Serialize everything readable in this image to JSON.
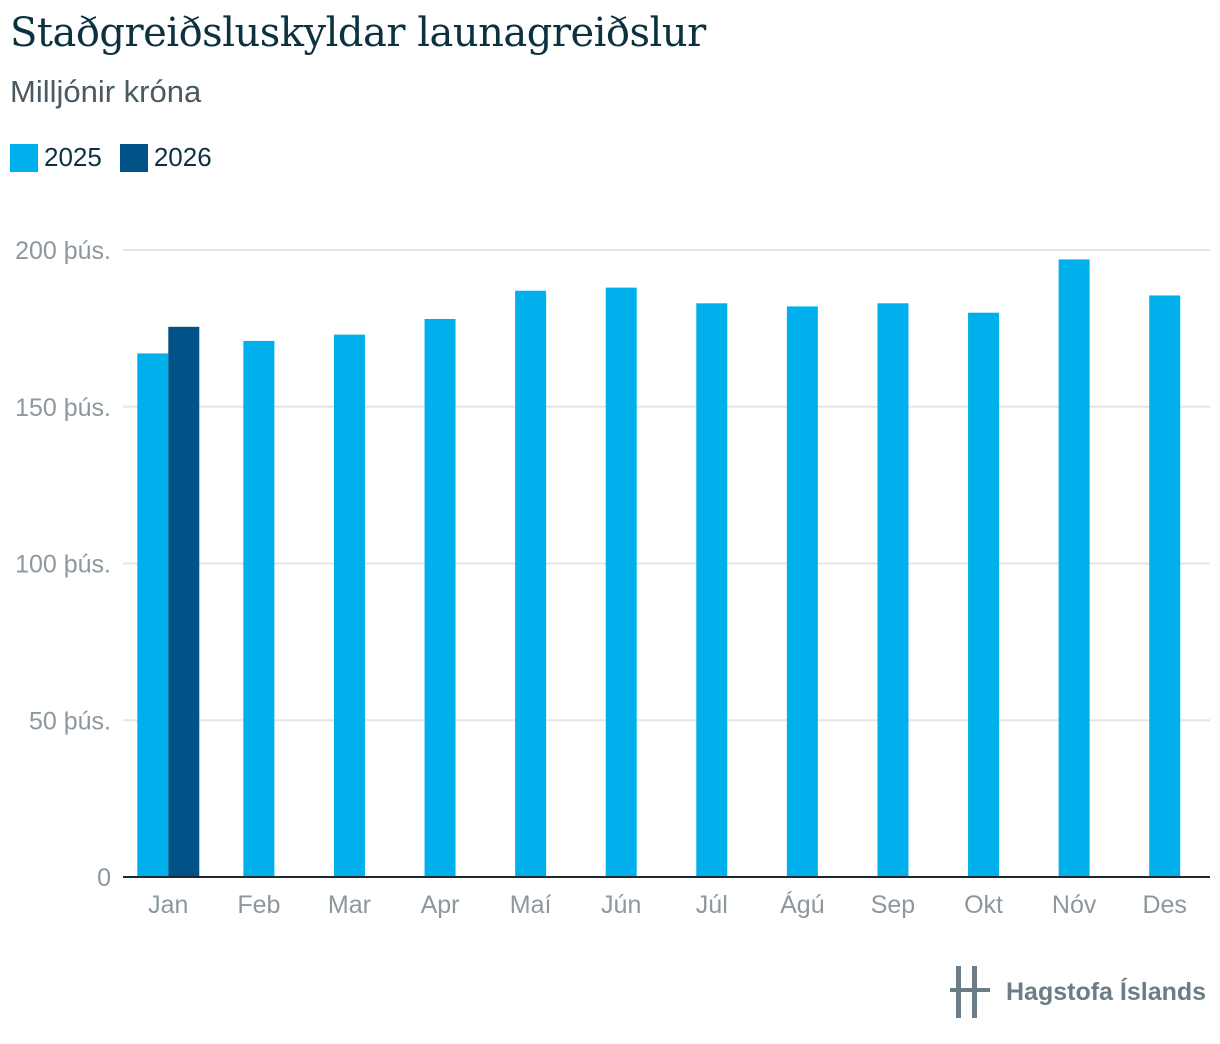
{
  "title": "Staðgreiðsluskyldar launagreiðslur",
  "subtitle": "Milljónir króna",
  "legend": [
    {
      "label": "2025",
      "color": "#00b0ec"
    },
    {
      "label": "2026",
      "color": "#005287"
    }
  ],
  "logo": {
    "text": "Hagstofa Íslands",
    "icon": "hagstofa-logo-icon"
  },
  "chart_data": {
    "type": "bar",
    "categories": [
      "Jan",
      "Feb",
      "Mar",
      "Apr",
      "Maí",
      "Jún",
      "Júl",
      "Ágú",
      "Sep",
      "Okt",
      "Nóv",
      "Des"
    ],
    "series": [
      {
        "name": "2025",
        "color": "#00b0ec",
        "values": [
          167000,
          171000,
          173000,
          178000,
          187000,
          188000,
          183000,
          182000,
          183000,
          180000,
          197000,
          185500
        ]
      },
      {
        "name": "2026",
        "color": "#005287",
        "values": [
          175500,
          null,
          null,
          null,
          null,
          null,
          null,
          null,
          null,
          null,
          null,
          null
        ]
      }
    ],
    "ylim": [
      0,
      200000
    ],
    "yticks": [
      {
        "value": 0,
        "label": "0"
      },
      {
        "value": 50000,
        "label": "50 þús."
      },
      {
        "value": 100000,
        "label": "100 þús."
      },
      {
        "value": 150000,
        "label": "150 þús."
      },
      {
        "value": 200000,
        "label": "200 þús."
      }
    ],
    "grid": true,
    "legend_position": "top-left"
  }
}
